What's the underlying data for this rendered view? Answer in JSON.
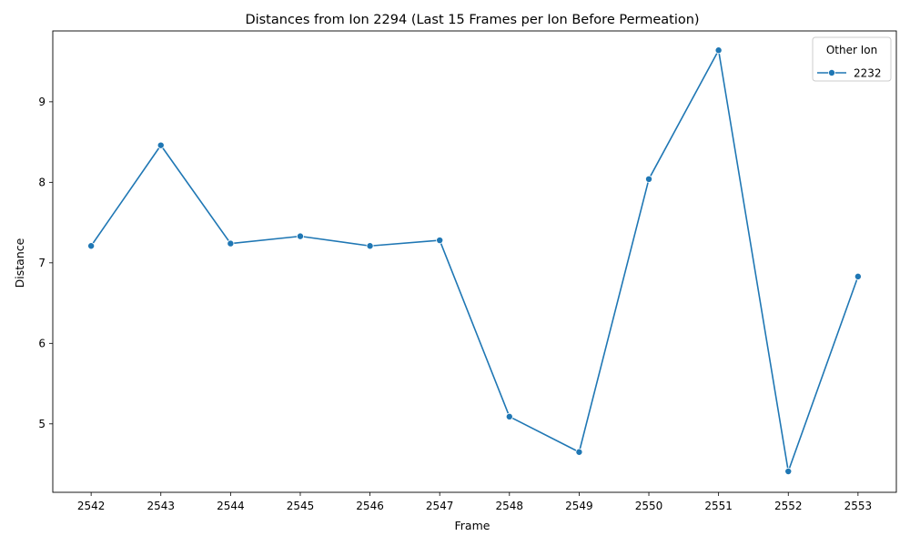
{
  "chart_data": {
    "type": "line",
    "title": "Distances from Ion 2294 (Last 15 Frames per Ion Before Permeation)",
    "xlabel": "Frame",
    "ylabel": "Distance",
    "x": [
      2542,
      2543,
      2544,
      2545,
      2546,
      2547,
      2548,
      2549,
      2550,
      2551,
      2552,
      2553
    ],
    "xlim": [
      2541.45,
      2553.55
    ],
    "ylim": [
      4.15,
      9.88
    ],
    "yticks": [
      5,
      6,
      7,
      8,
      9
    ],
    "grid": false,
    "legend": {
      "title": "Other Ion",
      "placement": "top-right"
    },
    "series": [
      {
        "name": "2232",
        "color": "#1f77b4",
        "marker": "circle",
        "values": [
          7.21,
          8.46,
          7.24,
          7.33,
          7.21,
          7.28,
          5.09,
          4.65,
          8.04,
          9.64,
          4.41,
          6.83
        ]
      }
    ]
  }
}
